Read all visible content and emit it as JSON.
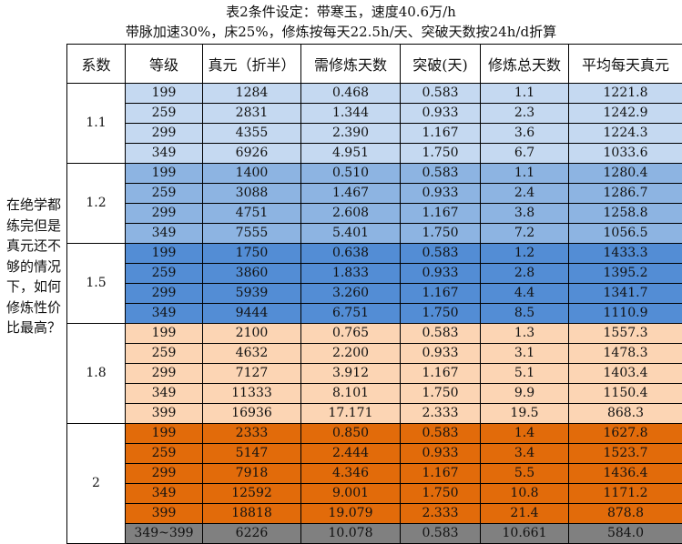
{
  "title": {
    "line1": "表2条件设定：带寒玉，速度40.6万/h",
    "line2": "带脉加速30%，床25%，修炼按每天22.5h/天、突破天数按24h/d折算"
  },
  "side_label": "在绝学都练完但是真元还不够的情况下，如何修炼性价比最高？",
  "headers": [
    "系数",
    "等级",
    "真元（折半）",
    "需修炼天数",
    "突破(天)",
    "修炼总天数",
    "平均每天真元"
  ],
  "colors": {
    "blue_light": "#c5d9f1",
    "blue_mid": "#8db4e2",
    "blue_dark": "#538dd5",
    "orange_light": "#fcd5b4",
    "orange_dark": "#e26b0a",
    "gray": "#808080"
  },
  "groups": [
    {
      "coef": "1.1",
      "color": "blue_light",
      "rows": [
        [
          "199",
          "1284",
          "0.468",
          "0.583",
          "1.1",
          "1221.8"
        ],
        [
          "259",
          "2831",
          "1.344",
          "0.933",
          "2.3",
          "1242.9"
        ],
        [
          "299",
          "4355",
          "2.390",
          "1.167",
          "3.6",
          "1224.3"
        ],
        [
          "349",
          "6926",
          "4.951",
          "1.750",
          "6.7",
          "1033.6"
        ]
      ]
    },
    {
      "coef": "1.2",
      "color": "blue_mid",
      "rows": [
        [
          "199",
          "1400",
          "0.510",
          "0.583",
          "1.1",
          "1280.4"
        ],
        [
          "259",
          "3088",
          "1.467",
          "0.933",
          "2.4",
          "1286.7"
        ],
        [
          "299",
          "4751",
          "2.608",
          "1.167",
          "3.8",
          "1258.8"
        ],
        [
          "349",
          "7555",
          "5.401",
          "1.750",
          "7.2",
          "1056.5"
        ]
      ]
    },
    {
      "coef": "1.5",
      "color": "blue_dark",
      "rows": [
        [
          "199",
          "1750",
          "0.638",
          "0.583",
          "1.2",
          "1433.3"
        ],
        [
          "259",
          "3860",
          "1.833",
          "0.933",
          "2.8",
          "1395.2"
        ],
        [
          "299",
          "5939",
          "3.260",
          "1.167",
          "4.4",
          "1341.7"
        ],
        [
          "349",
          "9444",
          "6.751",
          "1.750",
          "8.5",
          "1110.9"
        ]
      ]
    },
    {
      "coef": "1.8",
      "color": "orange_light",
      "rows": [
        [
          "199",
          "2100",
          "0.765",
          "0.583",
          "1.3",
          "1557.3"
        ],
        [
          "259",
          "4632",
          "2.200",
          "0.933",
          "3.1",
          "1478.3"
        ],
        [
          "299",
          "7127",
          "3.912",
          "1.167",
          "5.1",
          "1403.4"
        ],
        [
          "349",
          "11333",
          "8.101",
          "1.750",
          "9.9",
          "1150.4"
        ],
        [
          "399",
          "16936",
          "17.171",
          "2.333",
          "19.5",
          "868.3"
        ]
      ]
    },
    {
      "coef": "2",
      "color": "orange_dark",
      "rows": [
        [
          "199",
          "2333",
          "0.850",
          "0.583",
          "1.4",
          "1627.8"
        ],
        [
          "259",
          "5147",
          "2.444",
          "0.933",
          "3.4",
          "1523.7"
        ],
        [
          "299",
          "7918",
          "4.346",
          "1.167",
          "5.5",
          "1436.4"
        ],
        [
          "349",
          "12592",
          "9.001",
          "1.750",
          "10.8",
          "1171.2"
        ],
        [
          "399",
          "18818",
          "19.079",
          "2.333",
          "21.4",
          "878.8"
        ]
      ],
      "extra_row": {
        "color": "gray",
        "cells": [
          "349~399",
          "6226",
          "10.078",
          "0.583",
          "10.661",
          "584.0"
        ]
      }
    }
  ]
}
